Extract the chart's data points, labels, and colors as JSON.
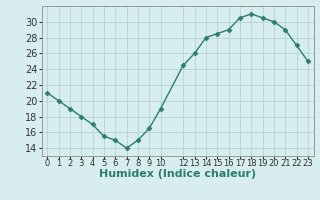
{
  "xlabel": "Humidex (Indice chaleur)",
  "x": [
    0,
    1,
    2,
    3,
    4,
    5,
    6,
    7,
    8,
    9,
    10,
    12,
    13,
    14,
    15,
    16,
    17,
    18,
    19,
    20,
    21,
    22,
    23
  ],
  "y": [
    21,
    20,
    19,
    18,
    17,
    15.5,
    15,
    14,
    15,
    16.5,
    19,
    24.5,
    26,
    28,
    28.5,
    29,
    30.5,
    31,
    30.5,
    30,
    29,
    27,
    25
  ],
  "line_color": "#2d7d6e",
  "marker": "D",
  "marker_size": 2.5,
  "bg_color": "#d8eeee",
  "grid_color": "#b8d8d8",
  "ylim": [
    13,
    32
  ],
  "yticks": [
    14,
    16,
    18,
    20,
    22,
    24,
    26,
    28,
    30
  ],
  "xlabel_fontsize": 8,
  "tick_fontsize": 7,
  "linewidth": 1.0
}
